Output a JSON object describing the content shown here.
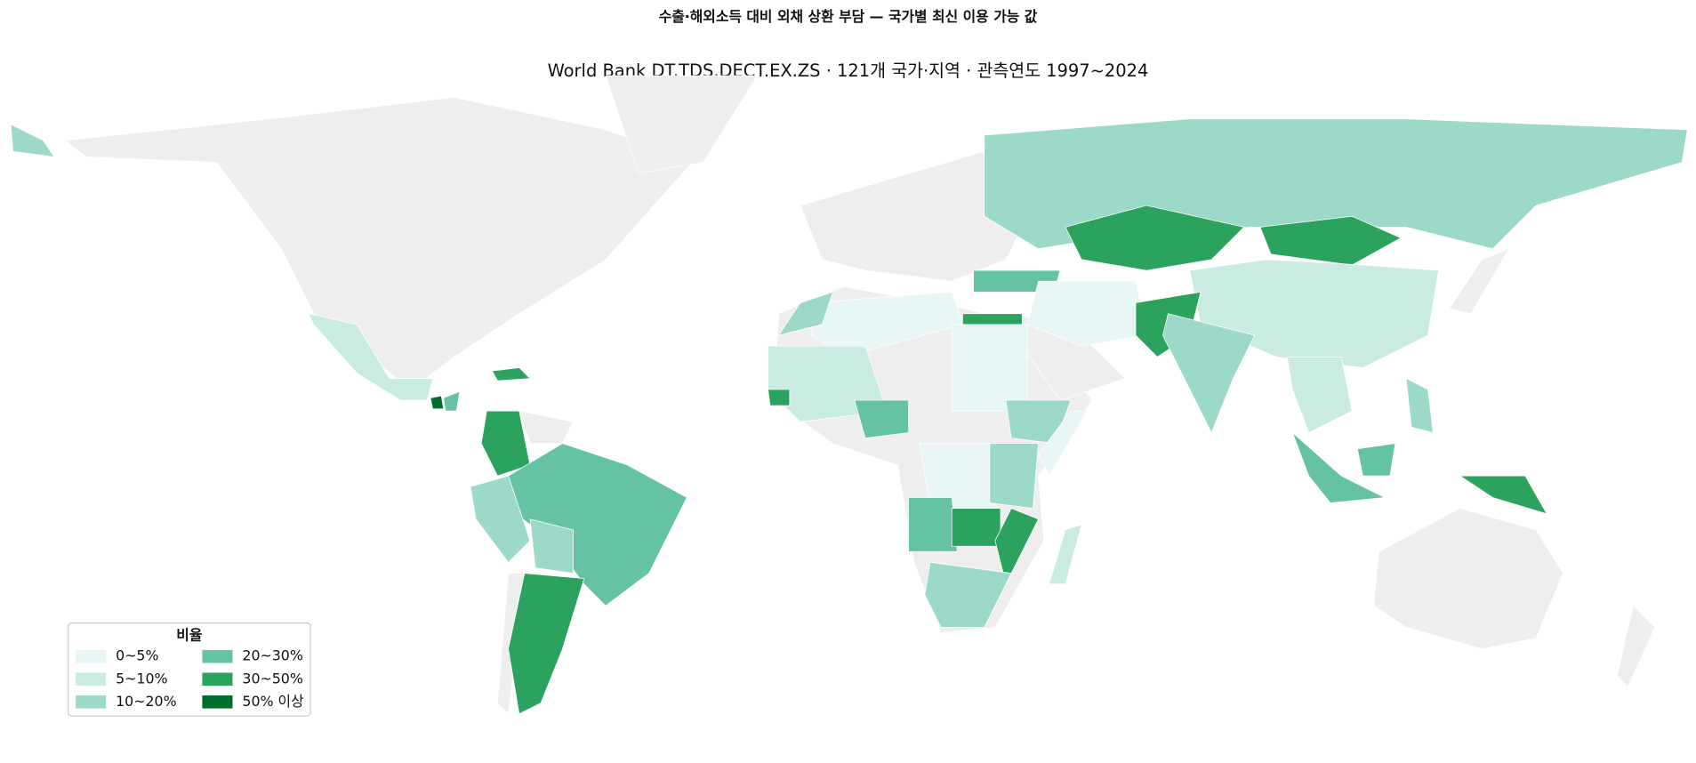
{
  "header": {
    "title": "수출·해외소득 대비 외채 상환 부담 — 국가별 최신 이용 가능 값",
    "subtitle": "World Bank DT.TDS.DECT.EX.ZS · 121개 국가·지역 · 관측연도 1997~2024"
  },
  "legend": {
    "title": "비율",
    "items": [
      {
        "label": "0~5%",
        "color": "#e8f6f6"
      },
      {
        "label": "5~10%",
        "color": "#c9ebe2"
      },
      {
        "label": "10~20%",
        "color": "#9dd9c9"
      },
      {
        "label": "20~30%",
        "color": "#66c2a4"
      },
      {
        "label": "30~50%",
        "color": "#2ca25f"
      },
      {
        "label": "50% 이상",
        "color": "#006d2c"
      }
    ]
  }
}
